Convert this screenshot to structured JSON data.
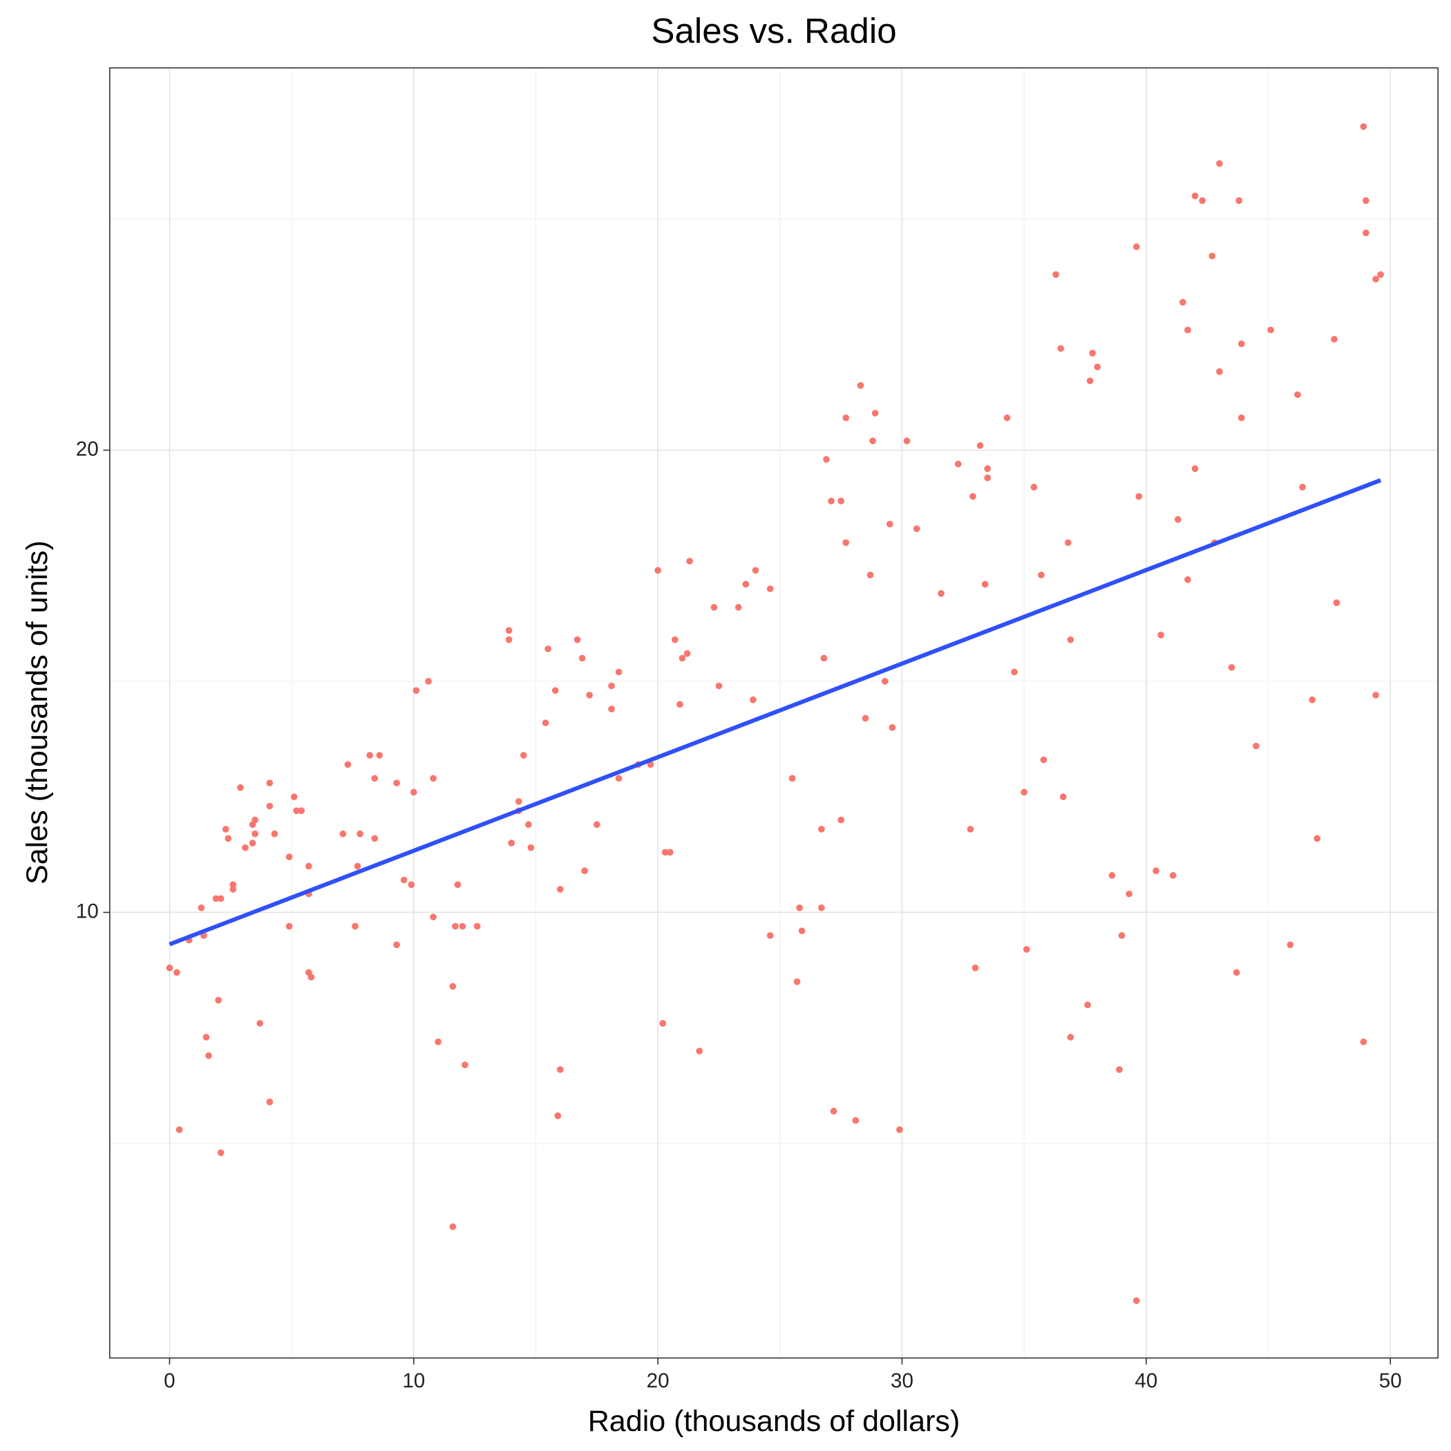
{
  "chart_data": {
    "type": "scatter",
    "title": "Sales vs. Radio",
    "x_label": "Radio (thousands of dollars)",
    "y_label": "Sales (thousands of units)",
    "color": "#F8766D",
    "x": [
      0,
      0.3,
      0.4,
      0.8,
      1.3,
      1.4,
      1.5,
      1.6,
      1.9,
      2.1,
      2.0,
      2.1,
      2.3,
      2.4,
      2.6,
      2.6,
      2.9,
      3.1,
      3.4,
      3.4,
      3.5,
      3.5,
      3.7,
      4.1,
      4.1,
      4.1,
      4.3,
      4.9,
      4.9,
      5.1,
      5.2,
      5.4,
      5.7,
      5.7,
      5.7,
      5.8,
      7.1,
      7.3,
      7.6,
      7.7,
      7.8,
      8.2,
      8.4,
      8.4,
      8.6,
      9.3,
      9.3,
      9.6,
      9.9,
      10.0,
      10.1,
      10.6,
      10.8,
      10.8,
      11.0,
      11.6,
      11.6,
      11.7,
      11.8,
      12.0,
      12.1,
      12.6,
      13.9,
      13.9,
      14.0,
      14.3,
      14.3,
      14.5,
      14.7,
      14.8,
      15.4,
      15.5,
      15.8,
      15.9,
      16.0,
      16.0,
      16.7,
      16.9,
      17.0,
      17.2,
      17.5,
      18.1,
      18.1,
      18.4,
      18.4,
      19.2,
      19.7,
      20.0,
      20.2,
      20.3,
      20.5,
      20.7,
      20.9,
      21.0,
      21.2,
      21.3,
      21.7,
      22.3,
      22.5,
      23.3,
      23.6,
      23.9,
      24.0,
      24.6,
      24.6,
      25.5,
      25.7,
      25.8,
      25.9,
      26.7,
      26.7,
      26.8,
      26.9,
      27.1,
      27.2,
      27.5,
      27.5,
      27.7,
      27.7,
      28.1,
      28.3,
      28.5,
      28.7,
      28.8,
      28.9,
      29.3,
      29.5,
      29.6,
      29.9,
      30.2,
      30.6,
      31.6,
      32.3,
      32.8,
      32.9,
      33.0,
      33.2,
      33.4,
      33.5,
      33.5,
      34.3,
      34.6,
      35.0,
      35.1,
      35.4,
      35.7,
      35.8,
      36.3,
      36.5,
      36.6,
      36.8,
      36.9,
      36.9,
      37.6,
      37.7,
      37.8,
      38.0,
      38.6,
      38.9,
      39.0,
      39.3,
      39.6,
      39.6,
      39.7,
      40.4,
      40.6,
      41.1,
      41.3,
      41.5,
      41.7,
      41.7,
      42.0,
      42.0,
      42.3,
      42.7,
      42.8,
      43.0,
      43.0,
      43.5,
      43.7,
      43.8,
      43.9,
      43.9,
      44.5,
      45.1,
      45.9,
      46.2,
      46.4,
      46.8,
      47.0,
      47.7,
      47.8,
      48.9,
      48.9,
      49.0,
      49.0,
      49.4,
      49.4,
      49.6
    ],
    "values": [
      8.8,
      8.7,
      5.3,
      9.4,
      10.1,
      9.5,
      7.3,
      6.9,
      10.3,
      10.3,
      8.1,
      4.8,
      11.8,
      11.6,
      10.6,
      10.5,
      12.7,
      11.4,
      11.5,
      11.9,
      12.0,
      11.7,
      7.6,
      12.8,
      12.3,
      5.9,
      11.7,
      11.2,
      9.7,
      12.5,
      12.2,
      12.2,
      11.0,
      10.4,
      8.7,
      8.6,
      11.7,
      13.2,
      9.7,
      11.0,
      11.7,
      13.4,
      12.9,
      11.6,
      13.4,
      12.8,
      9.3,
      10.7,
      10.6,
      12.6,
      14.8,
      15.0,
      12.9,
      9.9,
      7.2,
      8.4,
      3.2,
      9.7,
      10.6,
      9.7,
      6.7,
      9.7,
      16.1,
      15.9,
      11.5,
      12.4,
      12.2,
      13.4,
      11.9,
      11.4,
      14.1,
      15.7,
      14.8,
      5.6,
      10.5,
      6.6,
      15.9,
      15.5,
      10.9,
      14.7,
      11.9,
      14.9,
      14.4,
      15.2,
      12.9,
      13.2,
      13.2,
      17.4,
      7.6,
      11.3,
      11.3,
      15.9,
      14.5,
      15.5,
      15.6,
      17.6,
      7.0,
      16.6,
      14.9,
      16.6,
      17.1,
      14.6,
      17.4,
      17.0,
      9.5,
      12.9,
      8.5,
      10.1,
      9.6,
      11.8,
      10.1,
      15.5,
      19.8,
      18.9,
      5.7,
      18.9,
      12.0,
      20.7,
      18.0,
      5.5,
      21.4,
      14.2,
      17.3,
      20.2,
      20.8,
      15.0,
      18.4,
      14.0,
      5.3,
      20.2,
      18.3,
      16.9,
      19.7,
      11.8,
      19.0,
      8.8,
      20.1,
      17.1,
      19.6,
      19.4,
      20.7,
      15.2,
      12.6,
      9.2,
      19.2,
      17.3,
      13.3,
      23.8,
      22.2,
      12.5,
      18.0,
      15.9,
      7.3,
      8.0,
      21.5,
      22.1,
      21.8,
      10.8,
      6.6,
      9.5,
      10.4,
      1.6,
      24.4,
      19.0,
      10.9,
      16.0,
      10.8,
      18.5,
      23.2,
      22.6,
      17.2,
      25.5,
      19.6,
      25.4,
      24.2,
      18.0,
      26.2,
      21.7,
      15.3,
      8.7,
      25.4,
      20.7,
      22.3,
      13.6,
      22.6,
      9.3,
      21.2,
      19.2,
      14.6,
      11.6,
      22.4,
      16.7,
      27.0,
      7.2,
      25.4,
      24.7,
      23.7,
      14.7,
      23.8
    ],
    "fit_line": {
      "x": [
        0,
        49.6
      ],
      "values": [
        9.31,
        19.35
      ],
      "color": "#3050F8"
    },
    "xlim": [
      -2.45,
      51.95
    ],
    "ylim": [
      0.36,
      28.27
    ],
    "xticks": [
      0,
      10,
      20,
      30,
      40,
      50
    ],
    "yticks": [
      10,
      20
    ],
    "x_minor_grid": [
      5,
      15,
      25,
      35,
      45
    ],
    "y_minor_grid": [
      5,
      15,
      25
    ],
    "grid": true
  }
}
